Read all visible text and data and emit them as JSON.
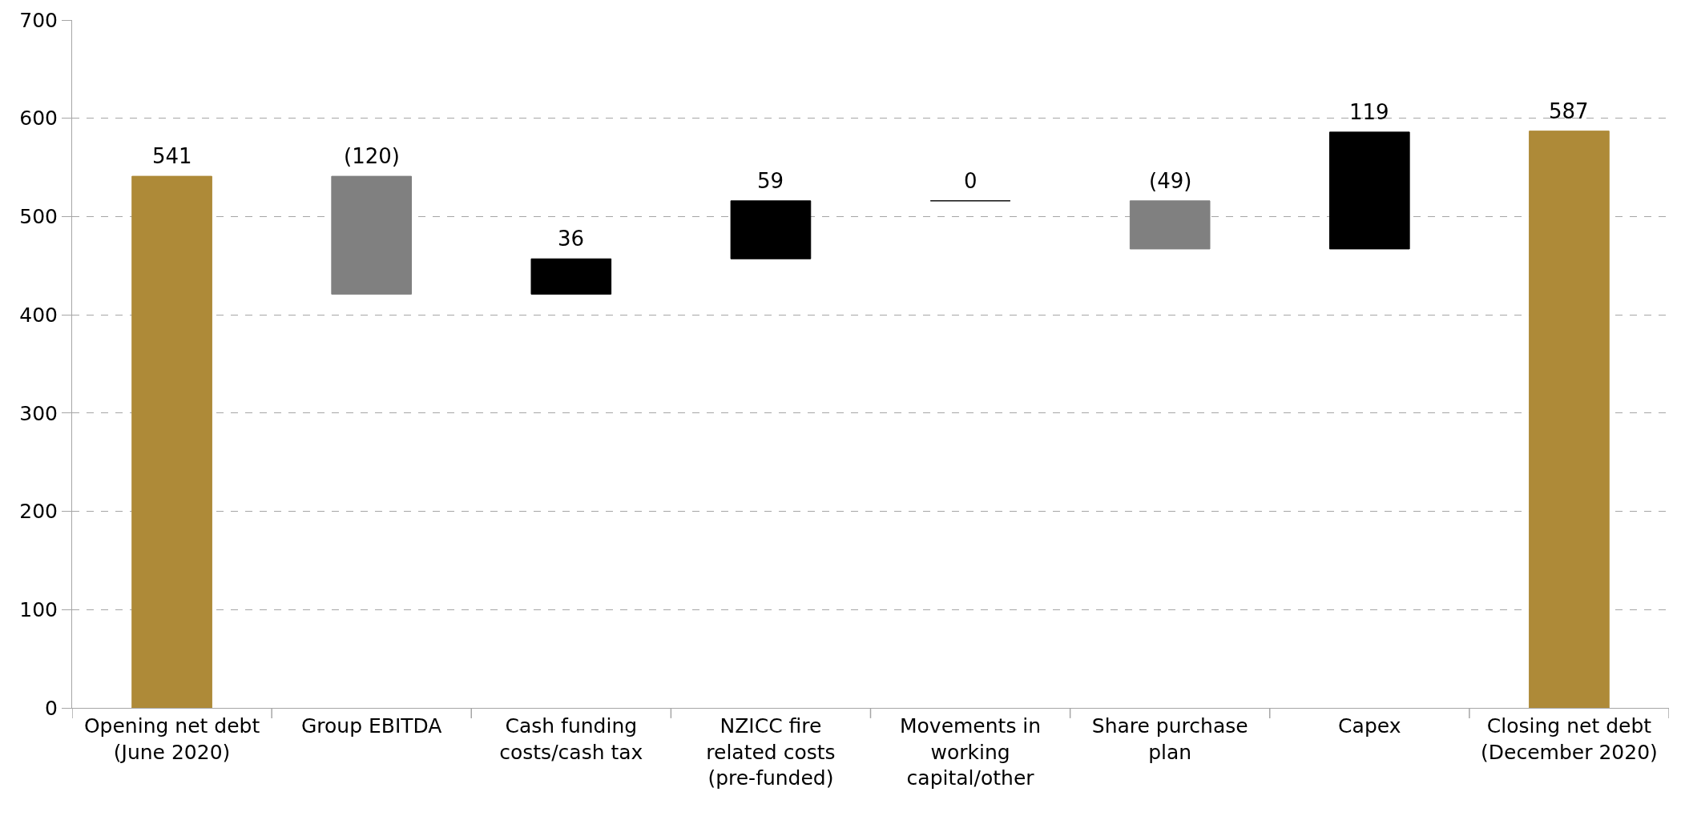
{
  "chart_data": {
    "type": "bar",
    "categories": [
      "Opening net debt (June 2020)",
      "Group EBITDA",
      "Cash funding costs/cash tax",
      "NZICC fire related costs (pre-funded)",
      "Movements in working capital/other",
      "Share purchase plan",
      "Capex",
      "Closing net debt (December 2020)"
    ],
    "values": [
      541,
      -120,
      36,
      59,
      0,
      -49,
      119,
      587
    ],
    "base": [
      0,
      541,
      421,
      457,
      516,
      516,
      467,
      0
    ],
    "colors": [
      "#ae8a38",
      "#808080",
      "#000000",
      "#000000",
      "#000000",
      "#808080",
      "#000000",
      "#ae8a38"
    ],
    "value_labels": [
      "541",
      "(120)",
      "36",
      "59",
      "0",
      "(49)",
      "119",
      "587"
    ],
    "ylim": [
      0,
      700
    ],
    "yticks": [
      0,
      100,
      200,
      300,
      400,
      500,
      600,
      700
    ],
    "grid": "y"
  }
}
